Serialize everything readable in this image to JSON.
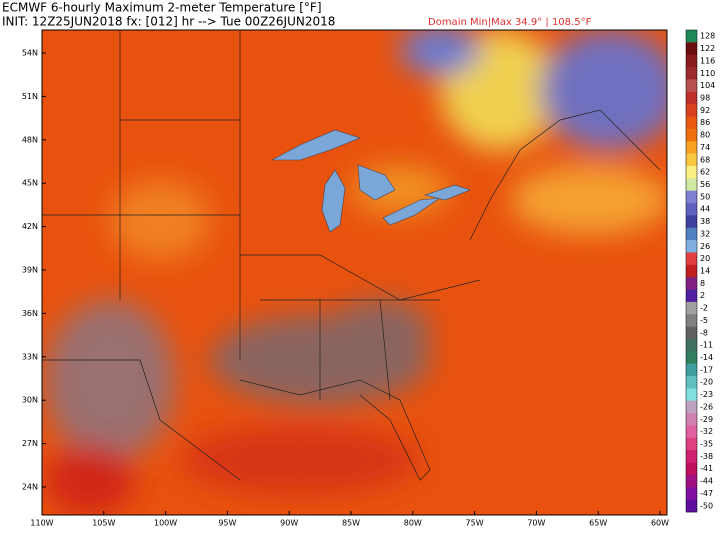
{
  "header": {
    "title": "ECMWF 6-hourly Maximum 2-meter Temperature [°F]",
    "init": "INIT: 12Z25JUN2018 fx: [012] hr --> Tue 00Z26JUN2018",
    "domain": "Domain Min|Max 34.9° | 108.5°F"
  },
  "map": {
    "lat_labels": [
      "54N",
      "51N",
      "48N",
      "45N",
      "42N",
      "39N",
      "36N",
      "33N",
      "30N",
      "27N",
      "24N"
    ],
    "lon_labels": [
      "110W",
      "105W",
      "100W",
      "95W",
      "90W",
      "85W",
      "80W",
      "75W",
      "70W",
      "65W",
      "60W"
    ]
  },
  "colorbar": {
    "entries": [
      {
        "label": "128",
        "color": "#1e8a5a"
      },
      {
        "label": "122",
        "color": "#6b1010"
      },
      {
        "label": "116",
        "color": "#8a1c1c"
      },
      {
        "label": "110",
        "color": "#9c2a2a"
      },
      {
        "label": "104",
        "color": "#b85050"
      },
      {
        "label": "98",
        "color": "#c0302a"
      },
      {
        "label": "92",
        "color": "#d84020"
      },
      {
        "label": "86",
        "color": "#e85810"
      },
      {
        "label": "80",
        "color": "#f07010"
      },
      {
        "label": "74",
        "color": "#f8a020"
      },
      {
        "label": "68",
        "color": "#f8c840"
      },
      {
        "label": "62",
        "color": "#f8f080"
      },
      {
        "label": "56",
        "color": "#d0e8a0"
      },
      {
        "label": "50",
        "color": "#8080d0"
      },
      {
        "label": "44",
        "color": "#6060c0"
      },
      {
        "label": "38",
        "color": "#4040a0"
      },
      {
        "label": "32",
        "color": "#5080c0"
      },
      {
        "label": "26",
        "color": "#80b0e0"
      },
      {
        "label": "20",
        "color": "#e04040"
      },
      {
        "label": "14",
        "color": "#c02020"
      },
      {
        "label": "8",
        "color": "#802080"
      },
      {
        "label": "2",
        "color": "#5020a0"
      },
      {
        "label": "-2",
        "color": "#a0a0a0"
      },
      {
        "label": "-5",
        "color": "#808080"
      },
      {
        "label": "-8",
        "color": "#606060"
      },
      {
        "label": "-11",
        "color": "#407060"
      },
      {
        "label": "-14",
        "color": "#308060"
      },
      {
        "label": "-17",
        "color": "#40a0a0"
      },
      {
        "label": "-20",
        "color": "#60c0c0"
      },
      {
        "label": "-23",
        "color": "#80e0e0"
      },
      {
        "label": "-26",
        "color": "#c0a0c0"
      },
      {
        "label": "-29",
        "color": "#d080b0"
      },
      {
        "label": "-32",
        "color": "#e060a0"
      },
      {
        "label": "-35",
        "color": "#e04080"
      },
      {
        "label": "-38",
        "color": "#d02070"
      },
      {
        "label": "-41",
        "color": "#c01060"
      },
      {
        "label": "-44",
        "color": "#a01080"
      },
      {
        "label": "-47",
        "color": "#8010a0"
      },
      {
        "label": "-50",
        "color": "#6010a0"
      }
    ]
  }
}
